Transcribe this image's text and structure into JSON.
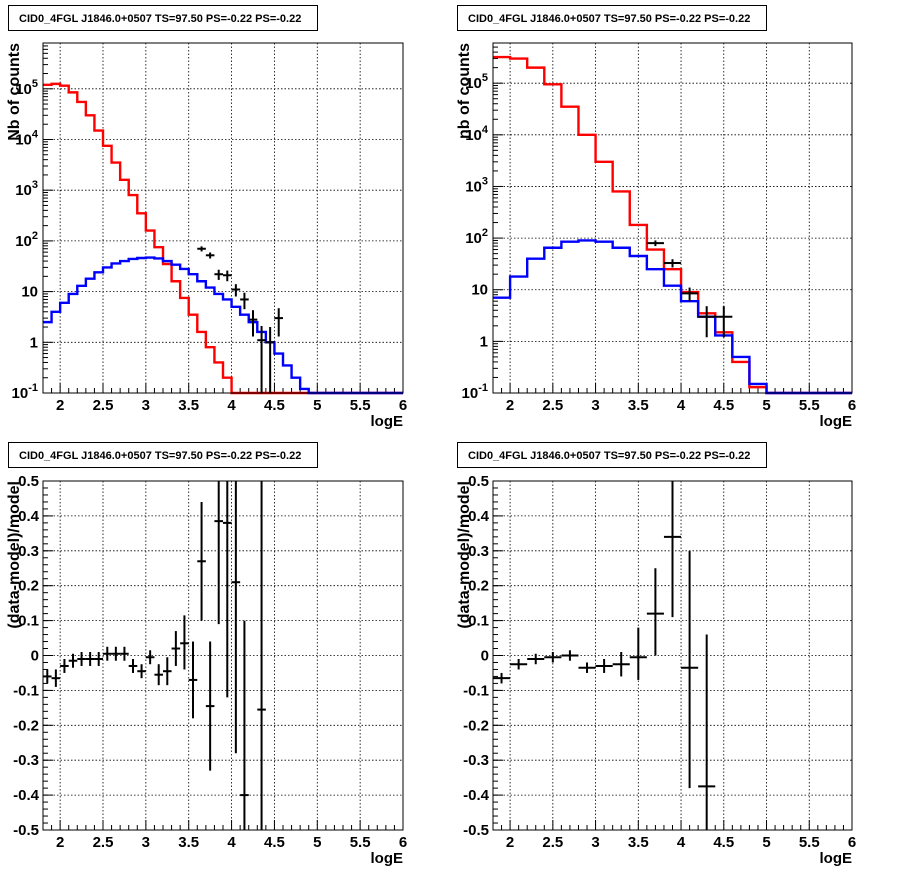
{
  "chart_data": [
    {
      "type": "line",
      "subtype": "step-histogram",
      "title": "CID0_4FGL J1846.0+0507 TS=97.50 PS=-0.22 PS=-0.22",
      "xlabel": "logE",
      "ylabel": "Nb of counts",
      "xlim": [
        1.8,
        6.0
      ],
      "ylim": [
        0.1,
        800000
      ],
      "yscale": "log",
      "grid": true,
      "x_ticks": [
        "2",
        "2.5",
        "3",
        "3.5",
        "4",
        "4.5",
        "5",
        "5.5",
        "6"
      ],
      "y_ticks": [
        "10^-1",
        "1",
        "10",
        "10^2",
        "10^3",
        "10^4",
        "10^5"
      ],
      "bin_edges": [
        1.8,
        1.9,
        2.0,
        2.1,
        2.2,
        2.3,
        2.4,
        2.5,
        2.6,
        2.7,
        2.8,
        2.9,
        3.0,
        3.1,
        3.2,
        3.3,
        3.4,
        3.5,
        3.6,
        3.7,
        3.8,
        3.9,
        4.0,
        4.1,
        4.2,
        4.3,
        4.4,
        4.5,
        4.6,
        4.7,
        4.8,
        4.9,
        5.0,
        5.1,
        5.2,
        5.3,
        5.4,
        5.5,
        5.6,
        5.7,
        5.8,
        5.9,
        6.0
      ],
      "series": [
        {
          "color": "#ff0000",
          "values": [
            120000,
            125000,
            115000,
            85000,
            55000,
            30000,
            15000,
            7500,
            3500,
            1600,
            800,
            350,
            160,
            75,
            35,
            16,
            7.5,
            3.5,
            1.6,
            0.8,
            0.4,
            0.2,
            0.1,
            0.1,
            0.1,
            0.1,
            0.1,
            0.1,
            0.1,
            0.1,
            0.1,
            0.1,
            0.1,
            0.1,
            0.1,
            0.1,
            0.1,
            0.1,
            0.1,
            0.1,
            0.1,
            0.1
          ]
        },
        {
          "color": "#0000ff",
          "values": [
            2.5,
            4,
            6,
            9,
            13,
            18,
            24,
            30,
            36,
            40,
            44,
            46,
            47,
            45,
            40,
            34,
            28,
            22,
            16,
            12,
            9,
            7,
            5,
            3.5,
            2.5,
            1.6,
            1.0,
            0.6,
            0.35,
            0.2,
            0.12,
            0.1,
            0.1,
            0.1,
            0.1,
            0.1,
            0.1,
            0.1,
            0.1,
            0.1,
            0.1,
            0.1
          ]
        }
      ],
      "points": [
        {
          "x": 3.65,
          "y": 70,
          "lo": 62,
          "hi": 78
        },
        {
          "x": 3.75,
          "y": 52,
          "lo": 45,
          "hi": 59
        },
        {
          "x": 3.85,
          "y": 22,
          "lo": 17,
          "hi": 27
        },
        {
          "x": 3.95,
          "y": 21,
          "lo": 16,
          "hi": 26
        },
        {
          "x": 4.05,
          "y": 11,
          "lo": 8,
          "hi": 14
        },
        {
          "x": 4.15,
          "y": 7,
          "lo": 4.5,
          "hi": 9.5
        },
        {
          "x": 4.25,
          "y": 2.8,
          "lo": 1.3,
          "hi": 4.3
        },
        {
          "x": 4.35,
          "y": 1.1,
          "lo": 0.1,
          "hi": 2.1
        },
        {
          "x": 4.45,
          "y": 1.0,
          "lo": 0.1,
          "hi": 2.0
        },
        {
          "x": 4.55,
          "y": 3.0,
          "lo": 1.3,
          "hi": 4.7
        }
      ]
    },
    {
      "type": "line",
      "subtype": "step-histogram",
      "title": "CID0_4FGL J1846.0+0507 TS=97.50 PS=-0.22 PS=-0.22",
      "xlabel": "logE",
      "ylabel": "nb of counts",
      "xlim": [
        1.8,
        6.0
      ],
      "ylim": [
        0.1,
        600000
      ],
      "yscale": "log",
      "grid": true,
      "x_ticks": [
        "2",
        "2.5",
        "3",
        "3.5",
        "4",
        "4.5",
        "5",
        "5.5",
        "6"
      ],
      "y_ticks": [
        "10^-1",
        "1",
        "10",
        "10^2",
        "10^3",
        "10^4",
        "10^5"
      ],
      "bin_edges": [
        1.8,
        2.0,
        2.2,
        2.4,
        2.6,
        2.8,
        3.0,
        3.2,
        3.4,
        3.6,
        3.8,
        4.0,
        4.2,
        4.4,
        4.6,
        4.8,
        5.0,
        5.2,
        5.4,
        5.6,
        5.8,
        6.0
      ],
      "series": [
        {
          "color": "#ff0000",
          "values": [
            320000,
            300000,
            200000,
            95000,
            35000,
            10000,
            3000,
            800,
            180,
            60,
            25,
            9,
            3.5,
            1.5,
            0.4,
            0.13,
            0.1,
            0.1,
            0.1,
            0.1,
            0.1
          ]
        },
        {
          "color": "#0000ff",
          "values": [
            7,
            18,
            40,
            65,
            85,
            90,
            85,
            65,
            45,
            25,
            12,
            6,
            3,
            1.3,
            0.5,
            0.15,
            0.1,
            0.1,
            0.1,
            0.1,
            0.1
          ]
        }
      ],
      "points": [
        {
          "x": 3.7,
          "y": 80,
          "lo": 70,
          "hi": 90
        },
        {
          "x": 3.9,
          "y": 33,
          "lo": 27,
          "hi": 39
        },
        {
          "x": 4.1,
          "y": 8.5,
          "lo": 6,
          "hi": 11
        },
        {
          "x": 4.3,
          "y": 3.0,
          "lo": 1.2,
          "hi": 4.8
        },
        {
          "x": 4.5,
          "y": 3.0,
          "lo": 1.2,
          "hi": 4.8
        }
      ]
    },
    {
      "type": "scatter",
      "subtype": "error-bars",
      "title": "CID0_4FGL J1846.0+0507 TS=97.50 PS=-0.22 PS=-0.22",
      "xlabel": "logE",
      "ylabel": "(data-model)/model",
      "xlim": [
        1.8,
        6.0
      ],
      "ylim": [
        -0.5,
        0.5
      ],
      "yscale": "linear",
      "grid": true,
      "x_ticks": [
        "2",
        "2.5",
        "3",
        "3.5",
        "4",
        "4.5",
        "5",
        "5.5",
        "6"
      ],
      "y_ticks": [
        "-0.5",
        "-0.4",
        "-0.3",
        "-0.2",
        "-0.1",
        "0",
        "0.1",
        "0.2",
        "0.3",
        "0.4",
        "0.5"
      ],
      "points": [
        {
          "x": 1.85,
          "y": -0.06,
          "lo": -0.08,
          "hi": -0.04
        },
        {
          "x": 1.95,
          "y": -0.065,
          "lo": -0.09,
          "hi": -0.04
        },
        {
          "x": 2.05,
          "y": -0.03,
          "lo": -0.05,
          "hi": -0.01
        },
        {
          "x": 2.15,
          "y": -0.015,
          "lo": -0.035,
          "hi": 0.005
        },
        {
          "x": 2.25,
          "y": -0.01,
          "lo": -0.03,
          "hi": 0.01
        },
        {
          "x": 2.35,
          "y": -0.01,
          "lo": -0.03,
          "hi": 0.01
        },
        {
          "x": 2.45,
          "y": -0.01,
          "lo": -0.03,
          "hi": 0.01
        },
        {
          "x": 2.55,
          "y": 0.005,
          "lo": -0.015,
          "hi": 0.025
        },
        {
          "x": 2.65,
          "y": 0.005,
          "lo": -0.015,
          "hi": 0.025
        },
        {
          "x": 2.75,
          "y": 0.005,
          "lo": -0.015,
          "hi": 0.025
        },
        {
          "x": 2.85,
          "y": -0.03,
          "lo": -0.05,
          "hi": -0.01
        },
        {
          "x": 2.95,
          "y": -0.045,
          "lo": -0.065,
          "hi": -0.025
        },
        {
          "x": 3.05,
          "y": -0.005,
          "lo": -0.025,
          "hi": 0.015
        },
        {
          "x": 3.15,
          "y": -0.055,
          "lo": -0.085,
          "hi": -0.025
        },
        {
          "x": 3.25,
          "y": -0.045,
          "lo": -0.085,
          "hi": -0.005
        },
        {
          "x": 3.35,
          "y": 0.02,
          "lo": -0.03,
          "hi": 0.07
        },
        {
          "x": 3.45,
          "y": 0.035,
          "lo": -0.04,
          "hi": 0.115
        },
        {
          "x": 3.55,
          "y": -0.07,
          "lo": -0.18,
          "hi": 0.04
        },
        {
          "x": 3.65,
          "y": 0.27,
          "lo": 0.1,
          "hi": 0.44
        },
        {
          "x": 3.75,
          "y": -0.145,
          "lo": -0.33,
          "hi": 0.04
        },
        {
          "x": 3.85,
          "y": 0.385,
          "lo": 0.09,
          "hi": 0.68
        },
        {
          "x": 3.95,
          "y": 0.38,
          "lo": -0.12,
          "hi": 0.88
        },
        {
          "x": 4.05,
          "y": 0.21,
          "lo": -0.28,
          "hi": 0.7
        },
        {
          "x": 4.15,
          "y": -0.4,
          "lo": -0.9,
          "hi": 0.1
        },
        {
          "x": 4.35,
          "y": -0.155,
          "lo": -0.82,
          "hi": 0.51
        }
      ]
    },
    {
      "type": "scatter",
      "subtype": "error-bars",
      "title": "CID0_4FGL J1846.0+0507 TS=97.50 PS=-0.22 PS=-0.22",
      "xlabel": "logE",
      "ylabel": "(data-model)/model",
      "xlim": [
        1.8,
        6.0
      ],
      "ylim": [
        -0.5,
        0.5
      ],
      "yscale": "linear",
      "grid": true,
      "x_ticks": [
        "2",
        "2.5",
        "3",
        "3.5",
        "4",
        "4.5",
        "5",
        "5.5",
        "6"
      ],
      "y_ticks": [
        "-0.5",
        "-0.4",
        "-0.3",
        "-0.2",
        "-0.1",
        "0",
        "0.1",
        "0.2",
        "0.3",
        "0.4",
        "0.5"
      ],
      "points": [
        {
          "x": 1.9,
          "y": -0.065,
          "lo": -0.08,
          "hi": -0.05
        },
        {
          "x": 2.1,
          "y": -0.025,
          "lo": -0.04,
          "hi": -0.01
        },
        {
          "x": 2.3,
          "y": -0.01,
          "lo": -0.025,
          "hi": 0.005
        },
        {
          "x": 2.5,
          "y": -0.005,
          "lo": -0.02,
          "hi": 0.01
        },
        {
          "x": 2.7,
          "y": 0.0,
          "lo": -0.015,
          "hi": 0.015
        },
        {
          "x": 2.9,
          "y": -0.035,
          "lo": -0.05,
          "hi": -0.02
        },
        {
          "x": 3.1,
          "y": -0.03,
          "lo": -0.05,
          "hi": -0.01
        },
        {
          "x": 3.3,
          "y": -0.025,
          "lo": -0.06,
          "hi": 0.01
        },
        {
          "x": 3.5,
          "y": -0.005,
          "lo": -0.07,
          "hi": 0.08
        },
        {
          "x": 3.7,
          "y": 0.12,
          "lo": 0.0,
          "hi": 0.25
        },
        {
          "x": 3.9,
          "y": 0.34,
          "lo": 0.11,
          "hi": 0.57
        },
        {
          "x": 4.1,
          "y": -0.035,
          "lo": -0.38,
          "hi": 0.3
        },
        {
          "x": 4.3,
          "y": -0.375,
          "lo": -0.81,
          "hi": 0.06
        }
      ]
    }
  ]
}
